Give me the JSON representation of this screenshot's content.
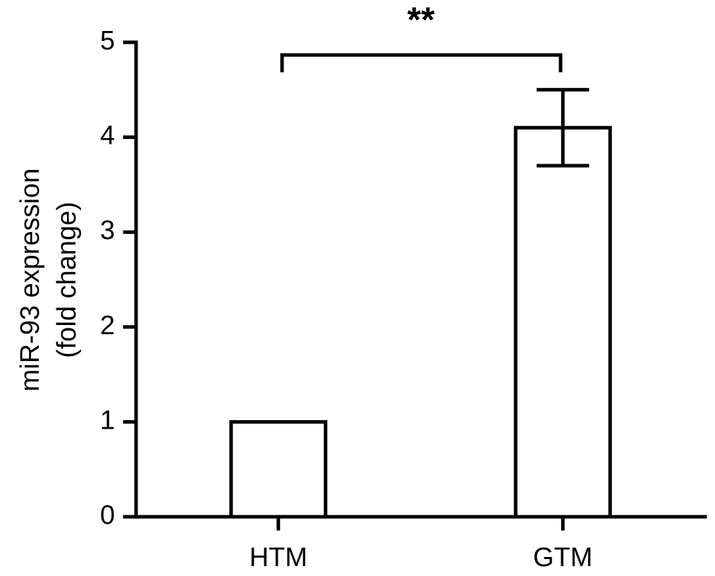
{
  "chart_data": {
    "type": "bar",
    "annotation": "**",
    "ylabel": [
      "miR-93 expression",
      "(fold change)"
    ],
    "categories": [
      "HTM",
      "GTM"
    ],
    "values": [
      1,
      4.1
    ],
    "errors": [
      0,
      0.4
    ],
    "color": "#ffffff",
    "ylim": [
      0,
      5
    ],
    "yticks": [
      0,
      1,
      2,
      3,
      4,
      5
    ],
    "grid": false
  }
}
